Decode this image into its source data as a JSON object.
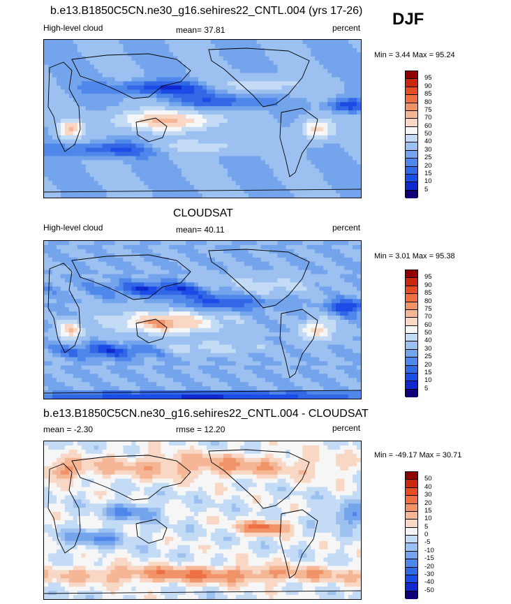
{
  "season": "DJF",
  "colors": {
    "seq": [
      "#100078",
      "#1028d0",
      "#1c4ce6",
      "#3268e6",
      "#5087ea",
      "#74a4ec",
      "#9cc0f0",
      "#c3dbf4",
      "#f6f6f6",
      "#f8d7c4",
      "#f5b696",
      "#f19369",
      "#ee7143",
      "#e54e23",
      "#c9280f",
      "#900000"
    ],
    "div": [
      "#100078",
      "#1028d0",
      "#1c4ce6",
      "#3268e6",
      "#5087ea",
      "#74a4ec",
      "#9cc0f0",
      "#c3dbf4",
      "#f6f6f6",
      "#f8d7c4",
      "#f5b696",
      "#f19369",
      "#ee7143",
      "#e54e23",
      "#c9280f",
      "#900000"
    ]
  },
  "chart_data": [
    {
      "type": "heatmap",
      "title": "b.e13.B1850C5CN.ne30_g16.sehires22_CNTL.004 (yrs 17-26)",
      "left": "High-level cloud",
      "center": "mean=  37.81",
      "right": "percent",
      "minmax": "Min =   3.44 Max =  95.24",
      "levels": [
        "95",
        "90",
        "85",
        "80",
        "75",
        "70",
        "60",
        "50",
        "40",
        "30",
        "25",
        "20",
        "15",
        "10",
        "5"
      ]
    },
    {
      "type": "heatmap",
      "title": "CLOUDSAT",
      "left": "High-level cloud",
      "center": "mean=  40.11",
      "right": "percent",
      "minmax": "Min =   3.01 Max =  95.38",
      "levels": [
        "95",
        "90",
        "85",
        "80",
        "75",
        "70",
        "60",
        "50",
        "40",
        "30",
        "25",
        "20",
        "15",
        "10",
        "5"
      ]
    },
    {
      "type": "heatmap",
      "title": "b.e13.B1850C5CN.ne30_g16.sehires22_CNTL.004 - CLOUDSAT",
      "left": "mean =  -2.30",
      "center": "rmse =  12.20",
      "right": "percent",
      "minmax": "Min = -49.17 Max =  30.71",
      "levels": [
        "50",
        "40",
        "30",
        "20",
        "15",
        "10",
        "5",
        "0",
        "-5",
        "-10",
        "-15",
        "-20",
        "-30",
        "-40",
        "-50"
      ]
    }
  ]
}
